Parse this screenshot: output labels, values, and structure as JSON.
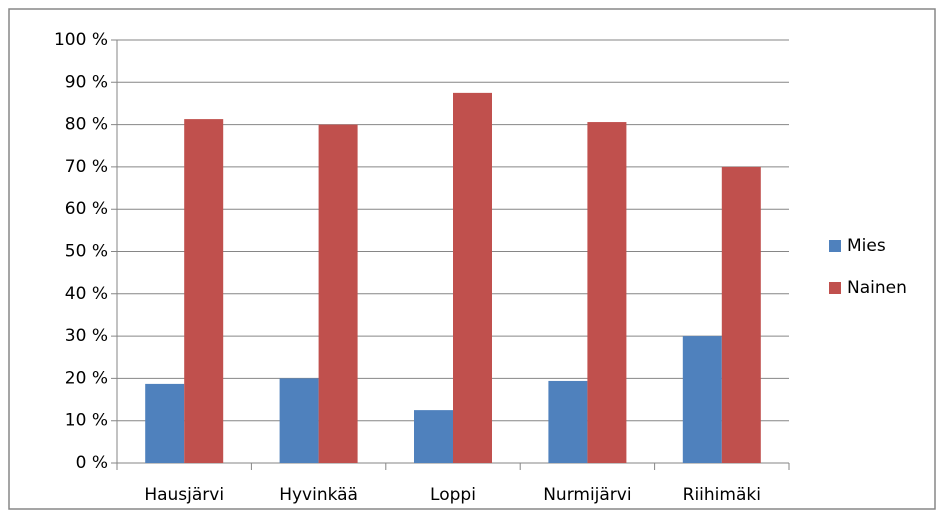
{
  "chart_data": {
    "type": "bar",
    "categories": [
      "Hausjärvi",
      "Hyvinkää",
      "Loppi",
      "Nurmijärvi",
      "Riihimäki"
    ],
    "series": [
      {
        "name": "Mies",
        "color": "#4f81bd",
        "values": [
          18.7,
          20,
          12.5,
          19.4,
          30
        ]
      },
      {
        "name": "Nainen",
        "color": "#c0504d",
        "values": [
          81.3,
          80,
          87.5,
          80.6,
          70
        ]
      }
    ],
    "ylim": [
      0,
      100
    ],
    "yticks": [
      {
        "value": 0,
        "label": "0 %"
      },
      {
        "value": 10,
        "label": "10 %"
      },
      {
        "value": 20,
        "label": "20 %"
      },
      {
        "value": 30,
        "label": "30 %"
      },
      {
        "value": 40,
        "label": "40 %"
      },
      {
        "value": 50,
        "label": "50 %"
      },
      {
        "value": 60,
        "label": "60 %"
      },
      {
        "value": 70,
        "label": "70 %"
      },
      {
        "value": 80,
        "label": "80 %"
      },
      {
        "value": 90,
        "label": "90 %"
      },
      {
        "value": 100,
        "label": "100 %"
      }
    ],
    "grid": true,
    "legend": "right"
  }
}
